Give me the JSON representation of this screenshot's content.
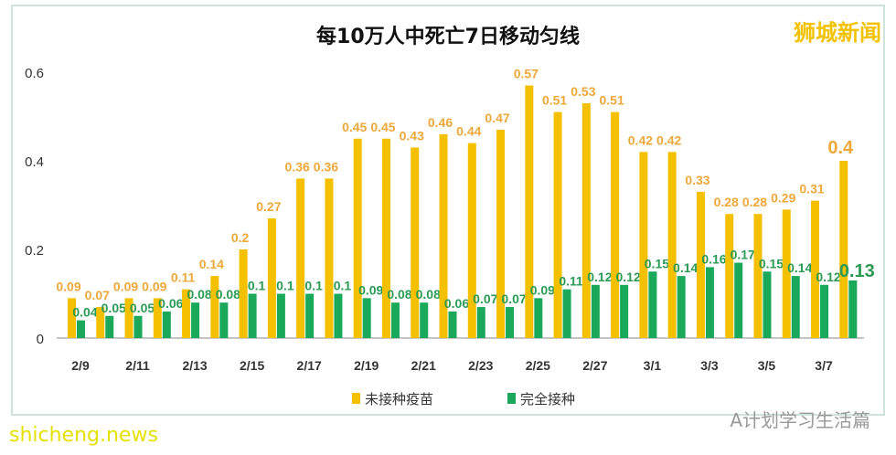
{
  "brand": "狮城新闻",
  "wechat": "A计划学习生活篇",
  "watermark": "shicheng.news",
  "chart_data": {
    "type": "bar",
    "title": "每10万人中死亡7日移动匀线",
    "categories": [
      "2/9",
      "2/10",
      "2/11",
      "2/12",
      "2/13",
      "2/14",
      "2/15",
      "2/16",
      "2/17",
      "2/18",
      "2/19",
      "2/20",
      "2/21",
      "2/22",
      "2/23",
      "2/24",
      "2/25",
      "2/26",
      "2/27",
      "2/28",
      "3/1",
      "3/2",
      "3/3",
      "3/4",
      "3/5",
      "3/6",
      "3/7",
      "3/8"
    ],
    "tick_labels": [
      "2/9",
      "2/11",
      "2/13",
      "2/15",
      "2/17",
      "2/19",
      "2/21",
      "2/23",
      "2/25",
      "2/27",
      "3/1",
      "3/3",
      "3/5",
      "3/7"
    ],
    "yticks": [
      0,
      0.2,
      0.4,
      0.6
    ],
    "ylim": [
      0,
      0.6
    ],
    "legend_position": "bottom",
    "grid": false,
    "series": [
      {
        "name": "未接种疫苗",
        "color": "#f5c000",
        "label_color": "#eda83a",
        "values": [
          0.09,
          0.07,
          0.09,
          0.09,
          0.11,
          0.14,
          0.2,
          0.27,
          0.36,
          0.36,
          0.45,
          0.45,
          0.43,
          0.46,
          0.44,
          0.47,
          0.57,
          0.51,
          0.53,
          0.51,
          0.42,
          0.42,
          0.33,
          0.28,
          0.28,
          0.29,
          0.31,
          0.4
        ]
      },
      {
        "name": "完全接种",
        "color": "#1aa85a",
        "label_color": "#2a9a55",
        "values": [
          0.04,
          0.05,
          0.05,
          0.06,
          0.08,
          0.08,
          0.1,
          0.1,
          0.1,
          0.1,
          0.09,
          0.08,
          0.08,
          0.06,
          0.07,
          0.07,
          0.09,
          0.11,
          0.12,
          0.12,
          0.15,
          0.14,
          0.16,
          0.17,
          0.15,
          0.14,
          0.12,
          0.13
        ]
      }
    ]
  }
}
